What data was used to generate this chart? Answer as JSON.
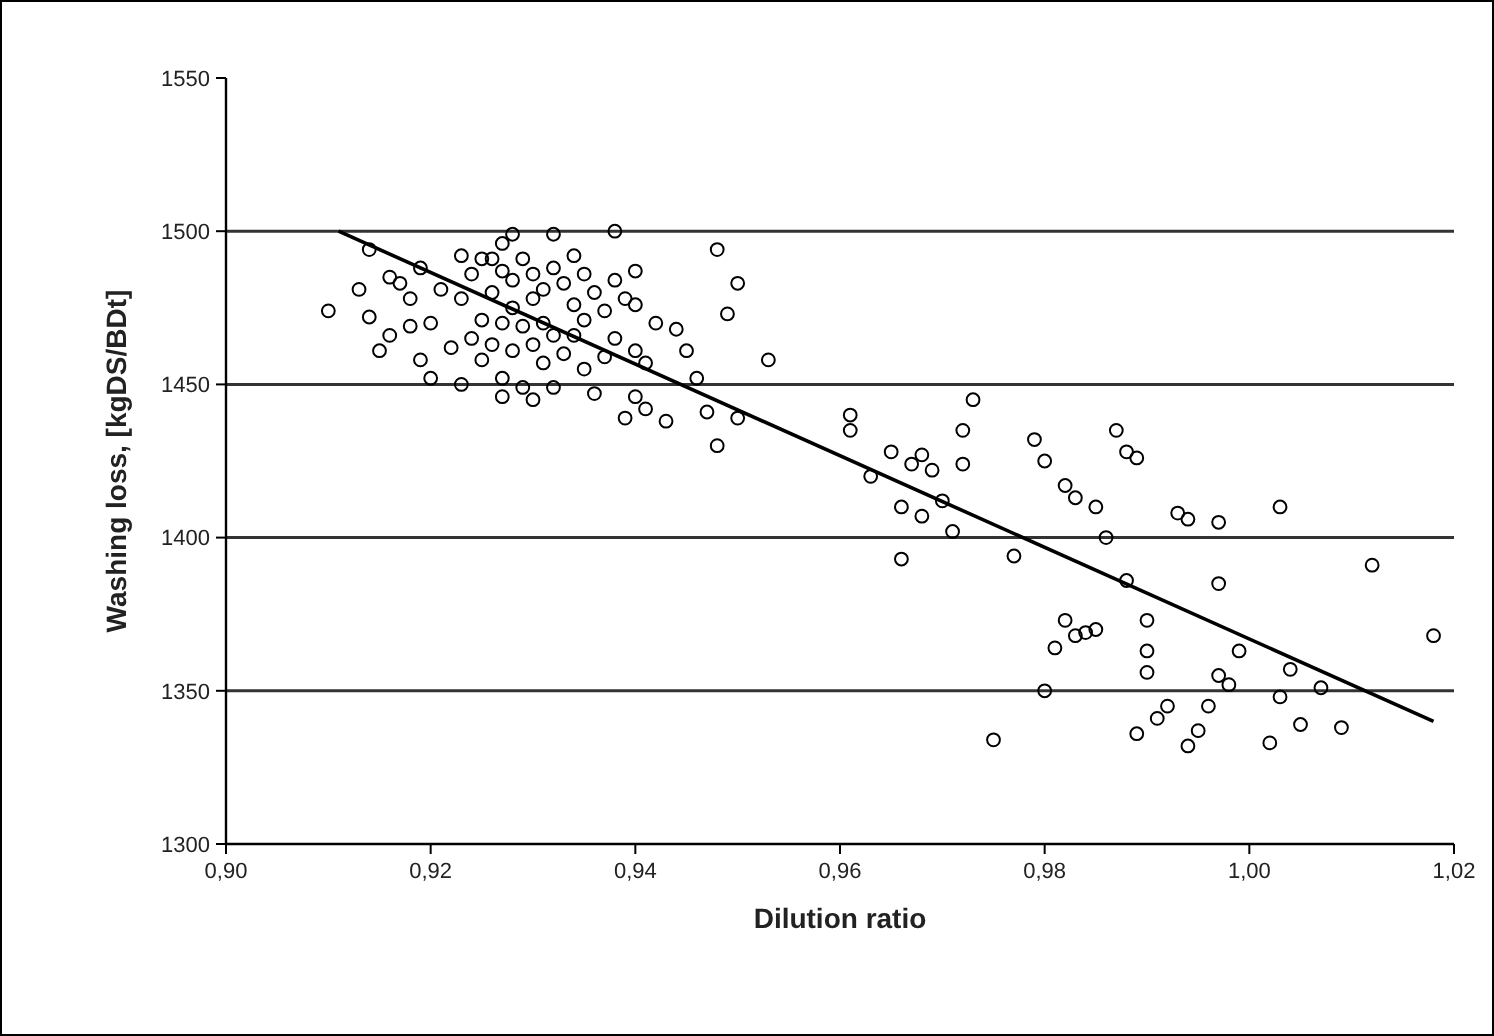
{
  "chart_data": {
    "type": "scatter",
    "xlabel": "Dilution ratio",
    "ylabel": "Washing loss, [kgDS/BDt]",
    "xlim": [
      0.9,
      1.02
    ],
    "ylim": [
      1300,
      1550
    ],
    "xticks": [
      {
        "value": 0.9,
        "label": "0,90"
      },
      {
        "value": 0.92,
        "label": "0,92"
      },
      {
        "value": 0.94,
        "label": "0,94"
      },
      {
        "value": 0.96,
        "label": "0,96"
      },
      {
        "value": 0.98,
        "label": "0,98"
      },
      {
        "value": 1.0,
        "label": "1,00"
      },
      {
        "value": 1.02,
        "label": "1,02"
      }
    ],
    "yticks": [
      1300,
      1350,
      1400,
      1450,
      1500,
      1550
    ],
    "grid": "y",
    "series": [
      {
        "marker": "circle",
        "color": "#000000",
        "x": [
          0.91,
          0.913,
          0.914,
          0.914,
          0.915,
          0.916,
          0.916,
          0.917,
          0.918,
          0.918,
          0.919,
          0.919,
          0.92,
          0.92,
          0.921,
          0.922,
          0.923,
          0.923,
          0.923,
          0.924,
          0.924,
          0.925,
          0.925,
          0.925,
          0.926,
          0.926,
          0.926,
          0.927,
          0.927,
          0.927,
          0.927,
          0.927,
          0.928,
          0.928,
          0.928,
          0.928,
          0.929,
          0.929,
          0.929,
          0.93,
          0.93,
          0.93,
          0.93,
          0.931,
          0.931,
          0.931,
          0.932,
          0.932,
          0.932,
          0.932,
          0.933,
          0.933,
          0.934,
          0.934,
          0.934,
          0.935,
          0.935,
          0.935,
          0.936,
          0.936,
          0.937,
          0.937,
          0.938,
          0.938,
          0.938,
          0.939,
          0.939,
          0.94,
          0.94,
          0.94,
          0.94,
          0.941,
          0.941,
          0.942,
          0.943,
          0.944,
          0.945,
          0.946,
          0.947,
          0.948,
          0.948,
          0.949,
          0.95,
          0.95,
          0.953,
          0.961,
          0.961,
          0.963,
          0.965,
          0.966,
          0.966,
          0.967,
          0.968,
          0.968,
          0.969,
          0.97,
          0.971,
          0.972,
          0.972,
          0.973,
          0.975,
          0.977,
          0.979,
          0.98,
          0.98,
          0.981,
          0.982,
          0.982,
          0.983,
          0.983,
          0.984,
          0.985,
          0.985,
          0.986,
          0.987,
          0.988,
          0.988,
          0.989,
          0.989,
          0.99,
          0.99,
          0.99,
          0.991,
          0.992,
          0.993,
          0.994,
          0.994,
          0.995,
          0.996,
          0.997,
          0.997,
          0.997,
          0.998,
          0.999,
          1.002,
          1.003,
          1.003,
          1.004,
          1.005,
          1.007,
          1.009,
          1.012,
          1.018
        ],
        "values": [
          1474,
          1481,
          1494,
          1472,
          1461,
          1485,
          1466,
          1483,
          1478,
          1469,
          1488,
          1458,
          1470,
          1452,
          1481,
          1462,
          1492,
          1478,
          1450,
          1486,
          1465,
          1491,
          1471,
          1458,
          1491,
          1480,
          1463,
          1496,
          1487,
          1470,
          1452,
          1446,
          1499,
          1484,
          1475,
          1461,
          1491,
          1469,
          1449,
          1486,
          1478,
          1463,
          1445,
          1481,
          1470,
          1457,
          1499,
          1488,
          1466,
          1449,
          1483,
          1460,
          1492,
          1476,
          1466,
          1486,
          1471,
          1455,
          1447,
          1480,
          1474,
          1459,
          1500,
          1484,
          1465,
          1478,
          1439,
          1487,
          1476,
          1461,
          1446,
          1442,
          1457,
          1470,
          1438,
          1468,
          1461,
          1452,
          1441,
          1494,
          1430,
          1473,
          1439,
          1483,
          1458,
          1440,
          1435,
          1420,
          1428,
          1410,
          1393,
          1424,
          1407,
          1427,
          1422,
          1412,
          1402,
          1424,
          1435,
          1445,
          1334,
          1394,
          1432,
          1350,
          1425,
          1364,
          1417,
          1373,
          1413,
          1368,
          1369,
          1410,
          1370,
          1400,
          1435,
          1428,
          1386,
          1426,
          1336,
          1356,
          1363,
          1373,
          1341,
          1345,
          1408,
          1406,
          1332,
          1337,
          1345,
          1405,
          1385,
          1355,
          1352,
          1363,
          1333,
          1410,
          1348,
          1357,
          1339,
          1351,
          1338,
          1391,
          1368
        ]
      },
      {
        "type": "line",
        "marker": "none",
        "line_style": "solid",
        "color": "#000000",
        "x": [
          0.911,
          1.018
        ],
        "values": [
          1500,
          1340
        ]
      }
    ]
  }
}
